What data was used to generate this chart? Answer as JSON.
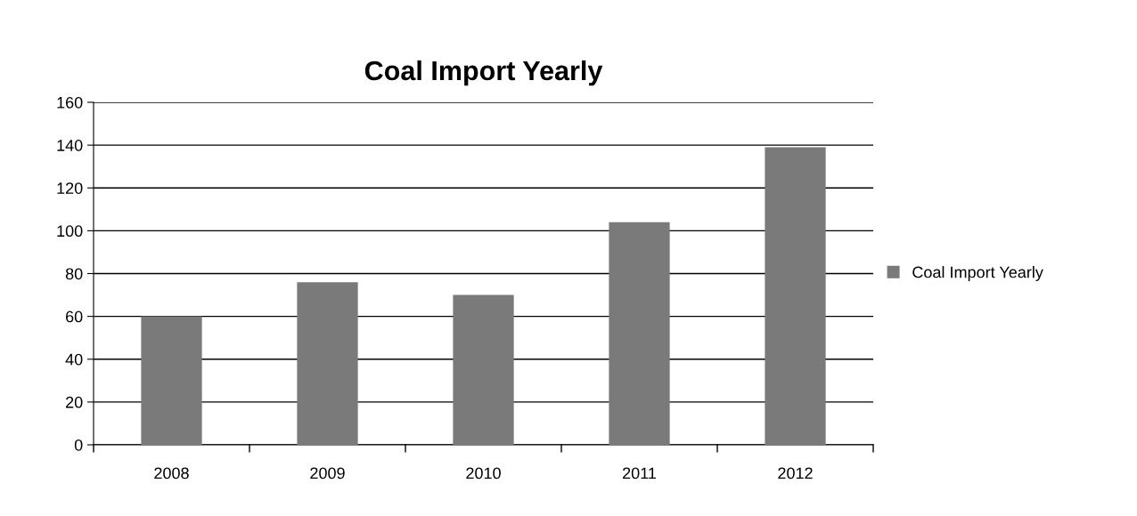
{
  "chart_data": {
    "type": "bar",
    "title": "Coal Import Yearly",
    "categories": [
      "2008",
      "2009",
      "2010",
      "2011",
      "2012"
    ],
    "series": [
      {
        "name": "Coal Import Yearly",
        "color": "#7a7a7a",
        "values": [
          60,
          76,
          70,
          104,
          139
        ]
      }
    ],
    "ylim": [
      0,
      160
    ],
    "yticks": [
      0,
      20,
      40,
      60,
      80,
      100,
      120,
      140,
      160
    ],
    "grid": "y",
    "legend": "right"
  }
}
